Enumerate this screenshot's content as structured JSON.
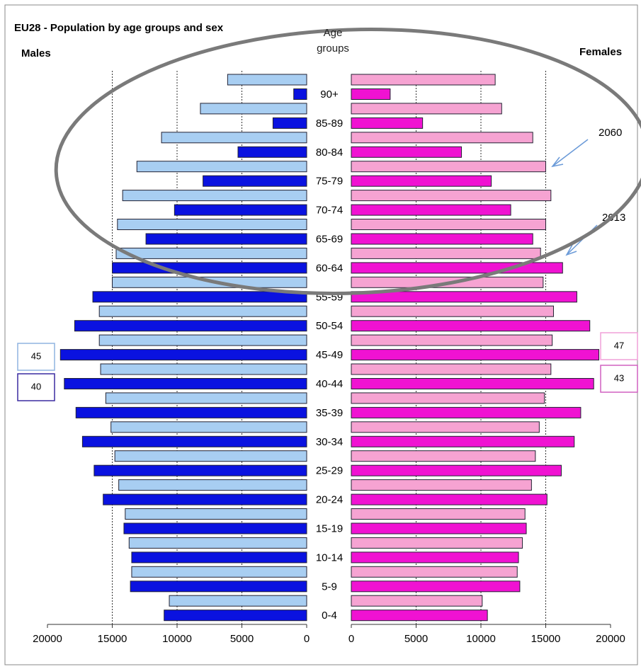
{
  "chart_data": {
    "type": "pyramid",
    "title": "EU28 - Population by age groups and sex",
    "center_label": "Age groups",
    "categories": [
      "90+",
      "85-89",
      "80-84",
      "75-79",
      "70-74",
      "65-69",
      "60-64",
      "55-59",
      "50-54",
      "45-49",
      "40-44",
      "35-39",
      "30-34",
      "25-29",
      "20-24",
      "15-19",
      "10-14",
      "5-9",
      "0-4"
    ],
    "years": [
      "2060",
      "2013"
    ],
    "series": [
      {
        "name": "Males",
        "colors": [
          "#a8cef2",
          "#0a12e0"
        ],
        "box_colors": [
          "#8fb4e0",
          "#3a2aa0"
        ],
        "values": [
          [
            6100,
            8200,
            11200,
            13100,
            14200,
            14600,
            14700,
            15000,
            16000,
            16000,
            15900,
            15500,
            15100,
            14800,
            14500,
            14000,
            13700,
            13500,
            10600
          ],
          [
            1000,
            2600,
            5300,
            8000,
            10200,
            12400,
            15000,
            16500,
            17900,
            19000,
            18700,
            17800,
            17300,
            16400,
            15700,
            14100,
            13500,
            13600,
            11000
          ]
        ],
        "box_values": [
          45,
          40
        ]
      },
      {
        "name": "Females",
        "colors": [
          "#f6a3d2",
          "#f012d2"
        ],
        "box_colors": [
          "#f0a0d8",
          "#d060c0"
        ],
        "values": [
          [
            11100,
            11600,
            14000,
            15000,
            15400,
            15000,
            14600,
            14800,
            15600,
            15500,
            15400,
            14900,
            14500,
            14200,
            13900,
            13400,
            13200,
            12800,
            10100
          ],
          [
            3000,
            5500,
            8500,
            10800,
            12300,
            14000,
            16300,
            17400,
            18400,
            19100,
            18700,
            17700,
            17200,
            16200,
            15100,
            13500,
            12900,
            13000,
            10500
          ]
        ],
        "box_values": [
          47,
          43
        ]
      }
    ],
    "xlim": [
      0,
      20000
    ],
    "xticks": [
      0,
      5000,
      10000,
      15000,
      20000
    ],
    "grid": true
  }
}
